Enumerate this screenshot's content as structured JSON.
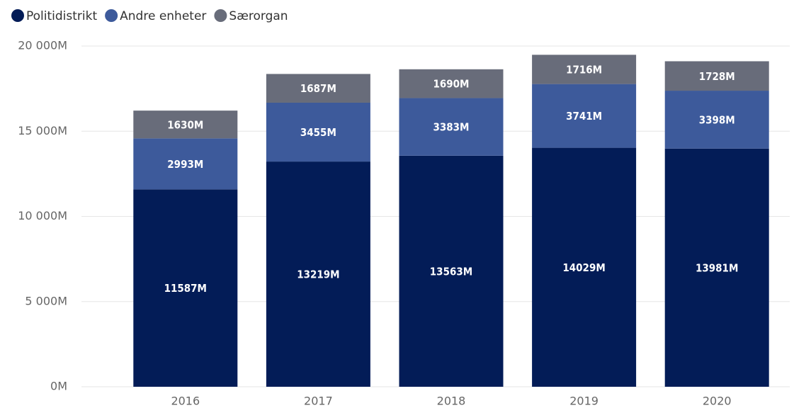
{
  "chart_data": {
    "type": "stacked_bar",
    "categories": [
      "2016",
      "2017",
      "2018",
      "2019",
      "2020"
    ],
    "series": [
      {
        "name": "Politidistrikt",
        "color": "#031c57",
        "values": [
          11587,
          13219,
          13563,
          14029,
          13981
        ],
        "value_labels": [
          "11587M",
          "13219M",
          "13563M",
          "14029M",
          "13981M"
        ]
      },
      {
        "name": "Andre enheter",
        "color": "#3d5a9b",
        "values": [
          2993,
          3455,
          3383,
          3741,
          3398
        ],
        "value_labels": [
          "2993M",
          "3455M",
          "3383M",
          "3741M",
          "3398M"
        ]
      },
      {
        "name": "Særorgan",
        "color": "#686c7a",
        "values": [
          1630,
          1687,
          1690,
          1716,
          1728
        ],
        "value_labels": [
          "1630M",
          "1687M",
          "1690M",
          "1716M",
          "1728M"
        ]
      }
    ],
    "ylim": [
      0,
      20000
    ],
    "yticks": [
      {
        "value": 0,
        "label": "0M"
      },
      {
        "value": 5000,
        "label": "5 000M"
      },
      {
        "value": 10000,
        "label": "10 000M"
      },
      {
        "value": 15000,
        "label": "15 000M"
      },
      {
        "value": 20000,
        "label": "20 000M"
      }
    ],
    "grid": true,
    "legend": "top-left"
  }
}
